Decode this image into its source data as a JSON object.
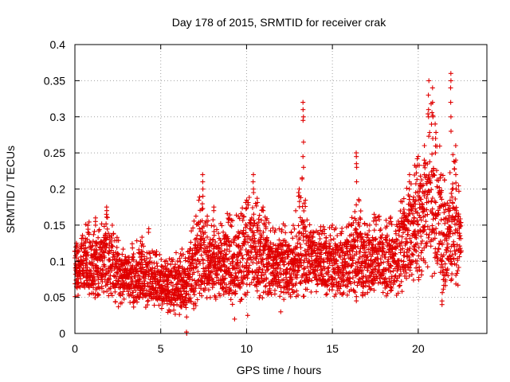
{
  "chart_data": {
    "type": "scatter",
    "title": "Day 178 of 2015, SRMTID for receiver crak",
    "xlabel": "GPS time / hours",
    "ylabel": "SRMTID / TECUs",
    "xlim": [
      0,
      24
    ],
    "ylim": [
      0,
      0.4
    ],
    "xticks": [
      0,
      5,
      10,
      15,
      20
    ],
    "xtick_labels": [
      "0",
      "5",
      "10",
      "15",
      "20"
    ],
    "yticks": [
      0,
      0.05,
      0.1,
      0.15,
      0.2,
      0.25,
      0.3,
      0.35,
      0.4
    ],
    "ytick_labels": [
      "0",
      "0.05",
      "0.1",
      "0.15",
      "0.2",
      "0.25",
      "0.3",
      "0.35",
      "0.4"
    ],
    "grid": true,
    "marker": "+",
    "color": "#e00000",
    "x_step_hours": 0.25,
    "envelope": {
      "x": [
        0.0,
        0.25,
        0.5,
        0.75,
        1.0,
        1.25,
        1.5,
        1.75,
        2.0,
        2.25,
        2.5,
        2.75,
        3.0,
        3.25,
        3.5,
        3.75,
        4.0,
        4.25,
        4.5,
        4.75,
        5.0,
        5.25,
        5.5,
        5.75,
        6.0,
        6.25,
        6.5,
        6.75,
        7.0,
        7.25,
        7.5,
        7.75,
        8.0,
        8.25,
        8.5,
        8.75,
        9.0,
        9.25,
        9.5,
        9.75,
        10.0,
        10.25,
        10.5,
        10.75,
        11.0,
        11.25,
        11.5,
        11.75,
        12.0,
        12.25,
        12.5,
        12.75,
        13.0,
        13.25,
        13.5,
        13.75,
        14.0,
        14.25,
        14.5,
        14.75,
        15.0,
        15.25,
        15.5,
        15.75,
        16.0,
        16.25,
        16.5,
        16.75,
        17.0,
        17.25,
        17.5,
        17.75,
        18.0,
        18.25,
        18.5,
        18.75,
        19.0,
        19.25,
        19.5,
        19.75,
        20.0,
        20.25,
        20.5,
        20.75,
        21.0,
        21.25,
        21.5,
        21.75,
        22.0,
        22.25,
        22.5
      ],
      "low": [
        0.05,
        0.05,
        0.05,
        0.045,
        0.045,
        0.05,
        0.055,
        0.05,
        0.05,
        0.045,
        0.035,
        0.04,
        0.045,
        0.04,
        0.035,
        0.035,
        0.035,
        0.035,
        0.03,
        0.035,
        0.035,
        0.03,
        0.025,
        0.025,
        0.025,
        0.02,
        0.02,
        0.025,
        0.035,
        0.04,
        0.045,
        0.045,
        0.05,
        0.045,
        0.04,
        0.04,
        0.035,
        0.035,
        0.04,
        0.045,
        0.05,
        0.055,
        0.05,
        0.045,
        0.045,
        0.045,
        0.05,
        0.055,
        0.05,
        0.045,
        0.045,
        0.05,
        0.04,
        0.045,
        0.05,
        0.055,
        0.055,
        0.05,
        0.05,
        0.05,
        0.05,
        0.05,
        0.05,
        0.05,
        0.05,
        0.045,
        0.045,
        0.05,
        0.055,
        0.055,
        0.055,
        0.05,
        0.05,
        0.045,
        0.045,
        0.05,
        0.055,
        0.065,
        0.065,
        0.07,
        0.07,
        0.075,
        0.085,
        0.08,
        0.06,
        0.05,
        0.045,
        0.065,
        0.07,
        0.065,
        0.06
      ],
      "high": [
        0.13,
        0.14,
        0.15,
        0.16,
        0.15,
        0.14,
        0.15,
        0.17,
        0.165,
        0.145,
        0.135,
        0.125,
        0.12,
        0.125,
        0.125,
        0.14,
        0.13,
        0.12,
        0.115,
        0.12,
        0.115,
        0.11,
        0.11,
        0.115,
        0.12,
        0.12,
        0.125,
        0.14,
        0.16,
        0.2,
        0.175,
        0.165,
        0.16,
        0.15,
        0.16,
        0.17,
        0.165,
        0.165,
        0.17,
        0.175,
        0.19,
        0.205,
        0.195,
        0.18,
        0.165,
        0.165,
        0.15,
        0.145,
        0.15,
        0.155,
        0.15,
        0.15,
        0.19,
        0.22,
        0.17,
        0.155,
        0.15,
        0.145,
        0.16,
        0.155,
        0.15,
        0.145,
        0.15,
        0.155,
        0.165,
        0.18,
        0.19,
        0.16,
        0.155,
        0.155,
        0.16,
        0.165,
        0.155,
        0.16,
        0.17,
        0.18,
        0.19,
        0.2,
        0.21,
        0.23,
        0.25,
        0.255,
        0.3,
        0.32,
        0.3,
        0.26,
        0.22,
        0.21,
        0.27,
        0.22,
        0.2
      ]
    },
    "spikes": [
      {
        "x": 0.1,
        "y": [
          0.11,
          0.12,
          0.125
        ]
      },
      {
        "x": 1.2,
        "y": [
          0.15,
          0.155,
          0.16
        ]
      },
      {
        "x": 1.85,
        "y": [
          0.165,
          0.17,
          0.175
        ]
      },
      {
        "x": 4.3,
        "y": [
          0.14,
          0.145
        ]
      },
      {
        "x": 6.5,
        "y": [
          0.0,
          0.002
        ]
      },
      {
        "x": 7.45,
        "y": [
          0.19,
          0.2,
          0.21,
          0.22
        ]
      },
      {
        "x": 8.1,
        "y": [
          0.17,
          0.175
        ]
      },
      {
        "x": 10.4,
        "y": [
          0.195,
          0.2,
          0.21,
          0.22
        ]
      },
      {
        "x": 10.95,
        "y": [
          0.17,
          0.175
        ]
      },
      {
        "x": 13.05,
        "y": [
          0.19,
          0.195,
          0.2
        ]
      },
      {
        "x": 13.3,
        "y": [
          0.23,
          0.245,
          0.265,
          0.295,
          0.3,
          0.31,
          0.32
        ]
      },
      {
        "x": 16.4,
        "y": [
          0.21,
          0.23,
          0.235,
          0.245,
          0.25
        ]
      },
      {
        "x": 17.45,
        "y": [
          0.16,
          0.165
        ]
      },
      {
        "x": 19.5,
        "y": [
          0.19,
          0.2,
          0.21,
          0.22
        ]
      },
      {
        "x": 20.35,
        "y": [
          0.22,
          0.24,
          0.26
        ]
      },
      {
        "x": 20.6,
        "y": [
          0.3,
          0.31,
          0.33,
          0.35
        ]
      },
      {
        "x": 20.85,
        "y": [
          0.27,
          0.3,
          0.32,
          0.34
        ]
      },
      {
        "x": 21.0,
        "y": [
          0.25,
          0.27,
          0.29
        ]
      },
      {
        "x": 21.9,
        "y": [
          0.28,
          0.3,
          0.32,
          0.34,
          0.35,
          0.36
        ]
      },
      {
        "x": 22.2,
        "y": [
          0.2,
          0.22,
          0.24,
          0.26
        ]
      },
      {
        "x": 21.4,
        "y": [
          0.04,
          0.045
        ]
      },
      {
        "x": 9.3,
        "y": [
          0.02
        ]
      },
      {
        "x": 10.05,
        "y": [
          0.025
        ]
      },
      {
        "x": 12.0,
        "y": [
          0.03
        ]
      }
    ]
  }
}
